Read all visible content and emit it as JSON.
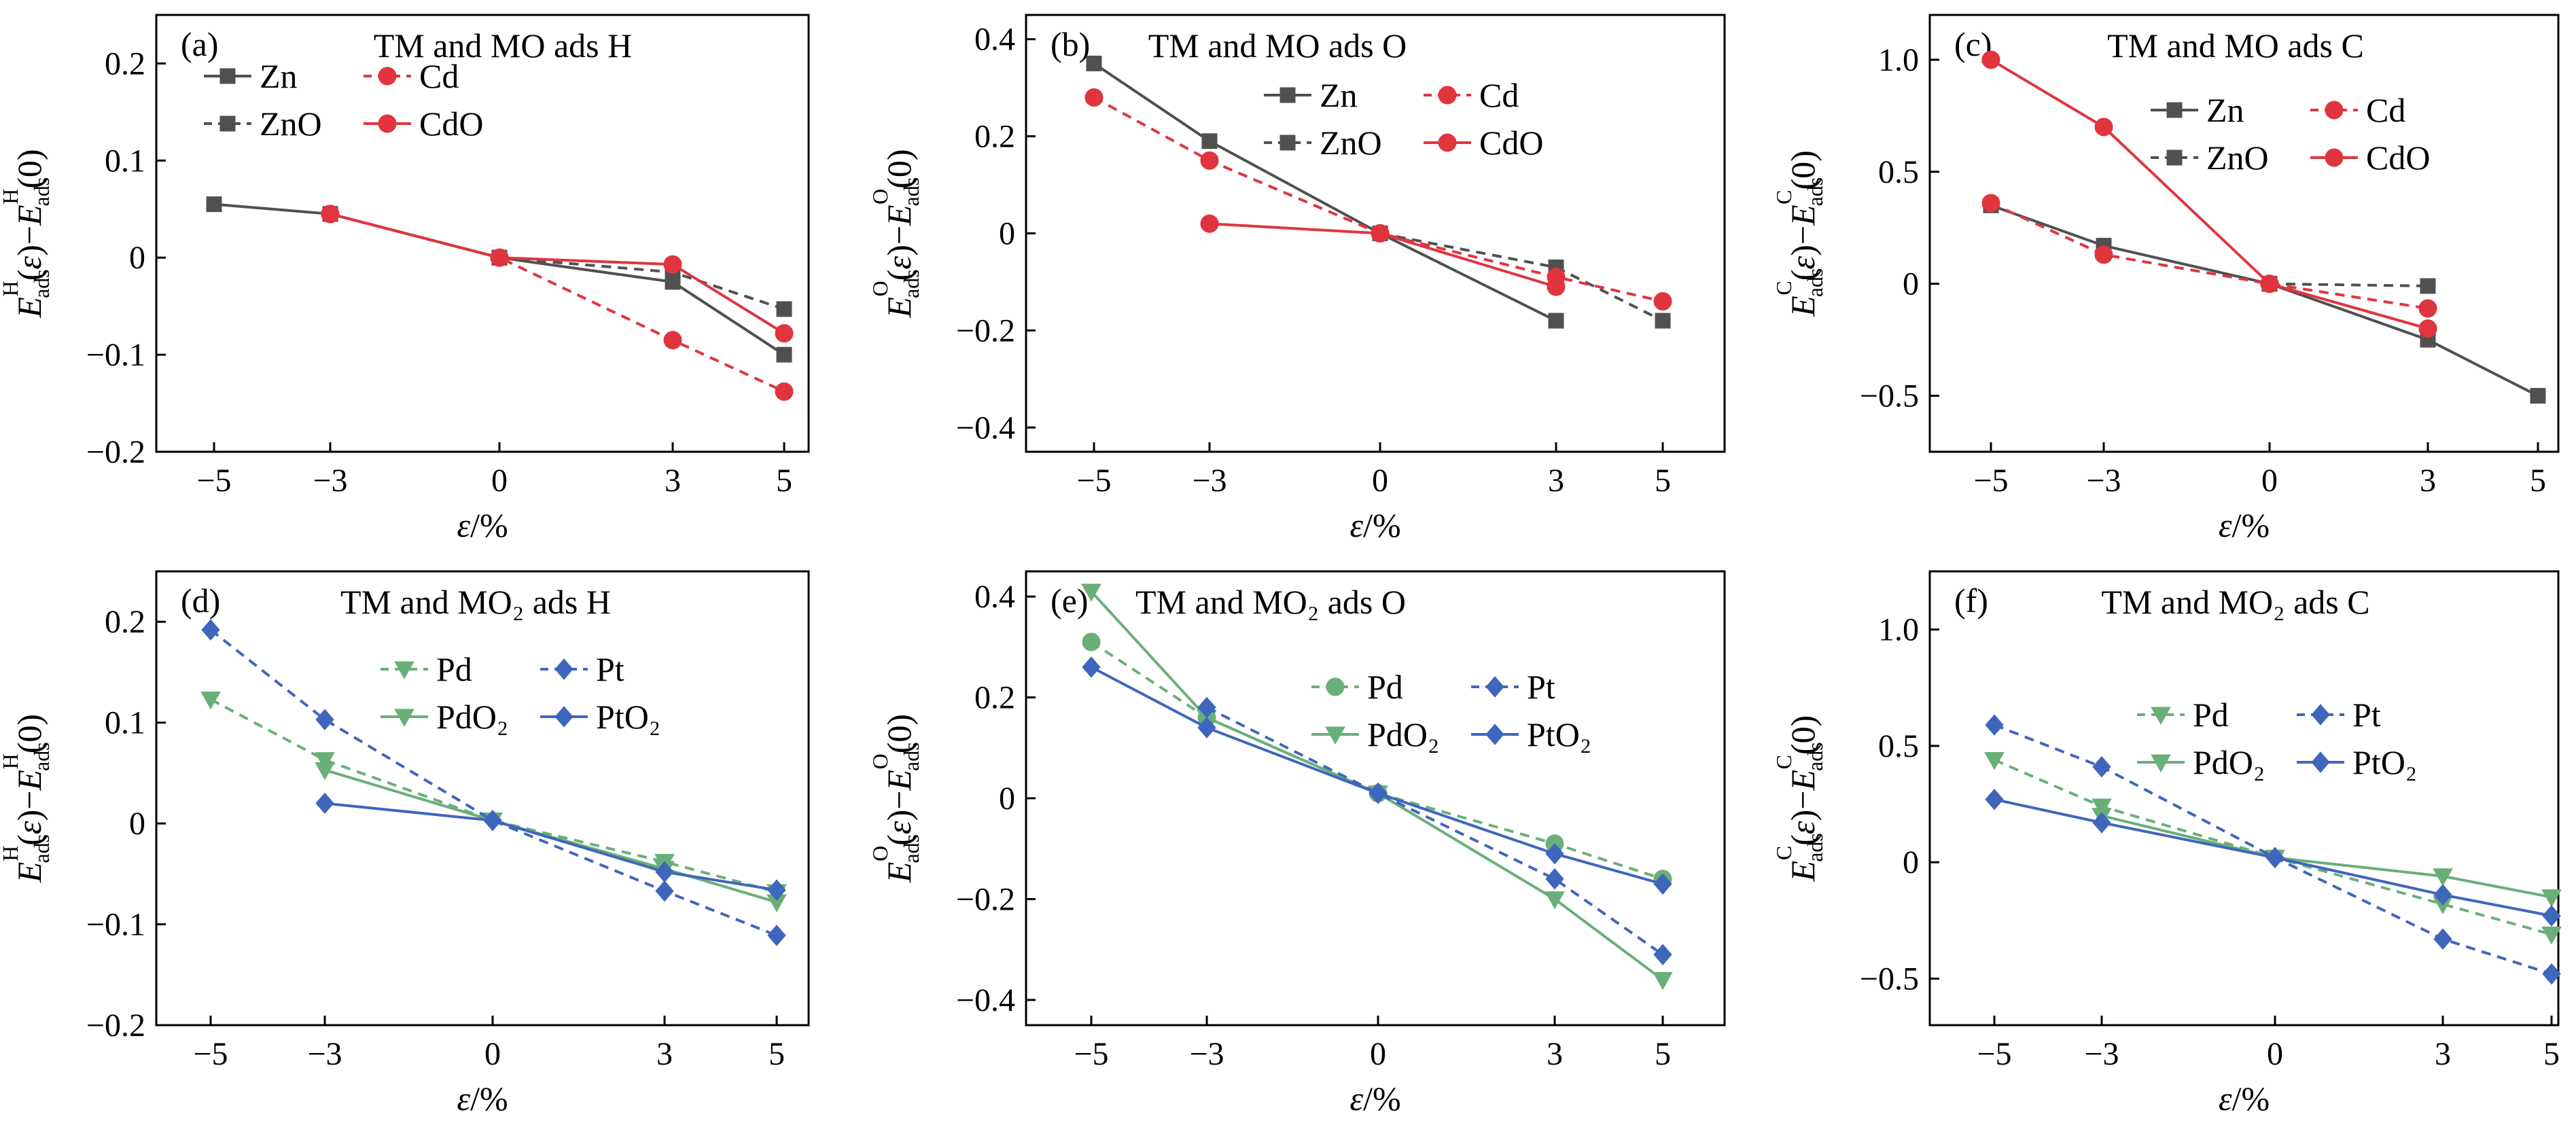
{
  "figure": {
    "xlabel": "ε/%",
    "colors": {
      "Zn": "#505050",
      "ZnO": "#505050",
      "Cd": "#e0353f",
      "CdO": "#e0353f",
      "Pd": "#6aaf79",
      "PdO2": "#6aaf79",
      "Pt": "#3f66bd",
      "PtO2": "#3f66bd"
    }
  },
  "chart_data": [
    {
      "type": "line",
      "panel": "(a)",
      "title": "TM and MO ads H",
      "ylabel_adsorbate": "H",
      "ylim": [
        -0.2,
        0.25
      ],
      "yticks": [
        "0.2",
        "0.1",
        "0",
        "-0.1",
        "-0.2"
      ],
      "ytick_values": [
        0.2,
        0.1,
        0,
        -0.1,
        -0.2
      ],
      "x": [
        -5,
        -3,
        0,
        3,
        5
      ],
      "xticks": [
        "-5",
        "-3",
        "0",
        "3",
        "5"
      ],
      "legend": {
        "columns": [
          [
            "Zn",
            "ZnO"
          ],
          [
            "Cd",
            "CdO"
          ]
        ],
        "placement": "top-left"
      },
      "series": [
        {
          "name": "Zn",
          "marker": "square",
          "line": "solid",
          "color": "#505050",
          "values": [
            0.055,
            0.045,
            0,
            -0.025,
            -0.1
          ]
        },
        {
          "name": "ZnO",
          "marker": "square",
          "line": "dashed",
          "color": "#505050",
          "values": [
            null,
            0.045,
            0,
            -0.015,
            -0.053
          ]
        },
        {
          "name": "Cd",
          "marker": "circle",
          "line": "dashed",
          "color": "#e0353f",
          "values": [
            null,
            0.045,
            0,
            -0.085,
            -0.138
          ]
        },
        {
          "name": "CdO",
          "marker": "circle",
          "line": "solid",
          "color": "#e0353f",
          "values": [
            null,
            0.045,
            0,
            -0.007,
            -0.078
          ]
        }
      ]
    },
    {
      "type": "line",
      "panel": "(b)",
      "title": "TM and MO ads O",
      "ylabel_adsorbate": "O",
      "ylim": [
        -0.45,
        0.45
      ],
      "yticks": [
        "0.4",
        "0.2",
        "0",
        "-0.2",
        "-0.4"
      ],
      "ytick_values": [
        0.4,
        0.2,
        0,
        -0.2,
        -0.4
      ],
      "x": [
        -5,
        -3,
        0,
        3,
        5
      ],
      "xticks": [
        "-5",
        "-3",
        "0",
        "3",
        "5"
      ],
      "legend": {
        "columns": [
          [
            "Zn",
            "ZnO"
          ],
          [
            "Cd",
            "CdO"
          ]
        ],
        "placement": "top-right"
      },
      "series": [
        {
          "name": "Zn",
          "marker": "square",
          "line": "solid",
          "color": "#505050",
          "values": [
            0.35,
            0.19,
            0,
            -0.18,
            null
          ]
        },
        {
          "name": "ZnO",
          "marker": "square",
          "line": "dashed",
          "color": "#505050",
          "values": [
            null,
            null,
            0,
            -0.07,
            -0.18
          ]
        },
        {
          "name": "Cd",
          "marker": "circle",
          "line": "dashed",
          "color": "#e0353f",
          "values": [
            0.28,
            0.15,
            0,
            -0.09,
            -0.14
          ]
        },
        {
          "name": "CdO",
          "marker": "circle",
          "line": "solid",
          "color": "#e0353f",
          "values": [
            null,
            0.02,
            0,
            -0.11,
            null
          ]
        }
      ]
    },
    {
      "type": "line",
      "panel": "(c)",
      "title": "TM and MO ads C",
      "ylabel_adsorbate": "C",
      "ylim": [
        -0.75,
        1.2
      ],
      "yticks": [
        "1.0",
        "0.5",
        "0",
        "-0.5"
      ],
      "ytick_values": [
        1.0,
        0.5,
        0,
        -0.5
      ],
      "x": [
        -5,
        -3,
        0,
        3,
        5
      ],
      "xticks": [
        "-5",
        "-3",
        "0",
        "3",
        "5"
      ],
      "legend": {
        "columns": [
          [
            "Zn",
            "ZnO"
          ],
          [
            "Cd",
            "CdO"
          ]
        ],
        "placement": "top-right"
      },
      "series": [
        {
          "name": "Zn",
          "marker": "square",
          "line": "solid",
          "color": "#505050",
          "values": [
            0.35,
            0.17,
            0,
            -0.25,
            -0.5
          ]
        },
        {
          "name": "ZnO",
          "marker": "square",
          "line": "dashed",
          "color": "#505050",
          "values": [
            null,
            null,
            0,
            -0.01,
            null
          ]
        },
        {
          "name": "Cd",
          "marker": "circle",
          "line": "dashed",
          "color": "#e0353f",
          "values": [
            0.36,
            0.13,
            0,
            -0.11,
            null
          ]
        },
        {
          "name": "CdO",
          "marker": "circle",
          "line": "solid",
          "color": "#e0353f",
          "values": [
            1.0,
            0.7,
            0,
            -0.2,
            null
          ]
        }
      ]
    },
    {
      "type": "line",
      "panel": "(d)",
      "title": "TM and MO₂ ads H",
      "ylabel_adsorbate": "H",
      "ylim": [
        -0.2,
        0.25
      ],
      "yticks": [
        "0.2",
        "0.1",
        "0",
        "-0.1",
        "-0.2"
      ],
      "ytick_values": [
        0.2,
        0.1,
        0,
        -0.1,
        -0.2
      ],
      "x": [
        -5,
        -3,
        0,
        3,
        5
      ],
      "xticks": [
        "-5",
        "-3",
        "0",
        "3",
        "5"
      ],
      "legend": {
        "columns": [
          [
            "Pd",
            "PdO₂"
          ],
          [
            "Pt",
            "PtO₂"
          ]
        ],
        "placement": "top-right"
      },
      "series": [
        {
          "name": "Pd",
          "marker": "triangle-down",
          "line": "dashed",
          "color": "#6aaf79",
          "values": [
            0.123,
            0.063,
            0.003,
            -0.038,
            -0.068
          ]
        },
        {
          "name": "PdO₂",
          "marker": "triangle-down",
          "line": "solid",
          "color": "#6aaf79",
          "values": [
            null,
            0.053,
            0.003,
            -0.045,
            -0.078
          ]
        },
        {
          "name": "Pt",
          "marker": "diamond",
          "line": "dashed",
          "color": "#3f66bd",
          "values": [
            0.192,
            0.103,
            0.003,
            -0.067,
            -0.111
          ]
        },
        {
          "name": "PtO₂",
          "marker": "diamond",
          "line": "solid",
          "color": "#3f66bd",
          "values": [
            null,
            0.02,
            0.003,
            -0.048,
            -0.066
          ]
        }
      ]
    },
    {
      "type": "line",
      "panel": "(e)",
      "title": "TM and MO₂ ads O",
      "ylabel_adsorbate": "O",
      "ylim": [
        -0.45,
        0.45
      ],
      "yticks": [
        "0.4",
        "0.2",
        "0",
        "-0.2",
        "-0.4"
      ],
      "ytick_values": [
        0.4,
        0.2,
        0,
        -0.2,
        -0.4
      ],
      "x": [
        -5,
        -3,
        0,
        3,
        5
      ],
      "xticks": [
        "-5",
        "-3",
        "0",
        "3",
        "5"
      ],
      "legend": {
        "columns": [
          [
            "Pd",
            "PdO₂"
          ],
          [
            "Pt",
            "PtO₂"
          ]
        ],
        "placement": "top-right"
      },
      "series": [
        {
          "name": "Pd",
          "marker": "circle",
          "line": "dashed",
          "color": "#6aaf79",
          "values": [
            0.31,
            0.16,
            0.01,
            -0.09,
            -0.16
          ]
        },
        {
          "name": "PdO₂",
          "marker": "triangle-down",
          "line": "solid",
          "color": "#6aaf79",
          "values": [
            0.41,
            0.16,
            0.01,
            -0.2,
            -0.36
          ]
        },
        {
          "name": "Pt",
          "marker": "diamond",
          "line": "dashed",
          "color": "#3f66bd",
          "values": [
            null,
            0.18,
            0.01,
            -0.16,
            -0.31
          ]
        },
        {
          "name": "PtO₂",
          "marker": "diamond",
          "line": "solid",
          "color": "#3f66bd",
          "values": [
            0.26,
            0.14,
            0.01,
            -0.11,
            -0.17
          ]
        }
      ]
    },
    {
      "type": "line",
      "panel": "(f)",
      "title": "TM and MO₂ ads C",
      "ylabel_adsorbate": "C",
      "ylim": [
        -0.7,
        1.25
      ],
      "yticks": [
        "1.0",
        "0.5",
        "0",
        "-0.5"
      ],
      "ytick_values": [
        1.0,
        0.5,
        0,
        -0.5
      ],
      "x": [
        -5,
        -3,
        0,
        3,
        5
      ],
      "xticks": [
        "-5",
        "-3",
        "0",
        "3",
        "5"
      ],
      "legend": {
        "columns": [
          [
            "Pd",
            "PdO₂"
          ],
          [
            "Pt",
            "PtO₂"
          ]
        ],
        "placement": "top-right"
      },
      "series": [
        {
          "name": "Pd",
          "marker": "triangle-down",
          "line": "dashed",
          "color": "#6aaf79",
          "values": [
            0.44,
            0.24,
            0.02,
            -0.18,
            -0.31
          ]
        },
        {
          "name": "PdO₂",
          "marker": "triangle-down",
          "line": "solid",
          "color": "#6aaf79",
          "values": [
            null,
            0.2,
            0.02,
            -0.06,
            -0.15
          ]
        },
        {
          "name": "Pt",
          "marker": "diamond",
          "line": "dashed",
          "color": "#3f66bd",
          "values": [
            0.59,
            0.41,
            0.02,
            -0.33,
            -0.48
          ]
        },
        {
          "name": "PtO₂",
          "marker": "diamond",
          "line": "solid",
          "color": "#3f66bd",
          "values": [
            0.27,
            0.17,
            0.02,
            -0.14,
            -0.23
          ]
        }
      ]
    }
  ]
}
